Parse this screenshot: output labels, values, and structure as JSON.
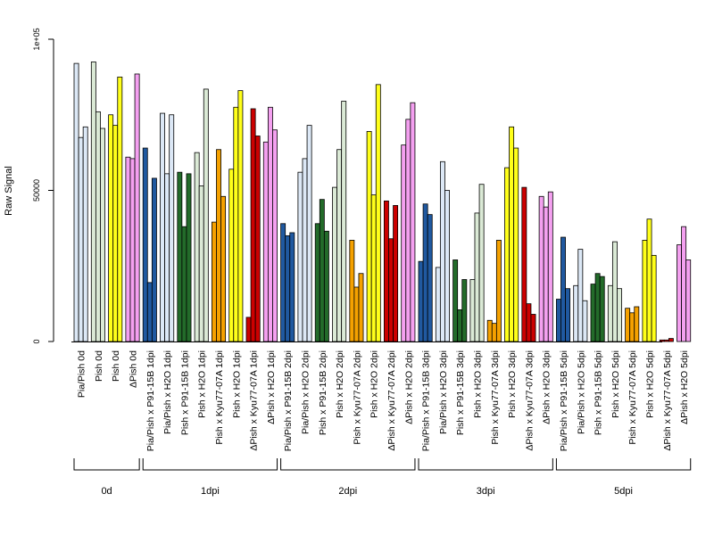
{
  "chart_data": {
    "type": "bar",
    "ylabel": "Raw Signal",
    "ylim": [
      0,
      100000
    ],
    "yticks": [
      {
        "value": 0,
        "label": "0"
      },
      {
        "value": 50000,
        "label": "50000"
      },
      {
        "value": 100000,
        "label": "1e+05"
      }
    ],
    "colors": {
      "PiaPish": "#dce8f6",
      "P91": "#2059a0",
      "H2O": "#dbead6",
      "P91H2O": "#236b2a",
      "Pish": "#ffff1a",
      "Kyu": "#f5a100",
      "dPish": "#f4a0f0",
      "dKyu": "#cc0000"
    },
    "categories": [
      {
        "label": "Pia/Pish 0d",
        "values": [
          92000,
          67500,
          71000
        ],
        "color": "PiaPish"
      },
      {
        "label": "Pish 0d",
        "values": [
          92500,
          76000,
          70500
        ],
        "color": "H2O"
      },
      {
        "label": "Pish 0d",
        "values": [
          75000,
          71500,
          87500
        ],
        "color": "Pish"
      },
      {
        "label": "ΔPish 0d",
        "values": [
          61000,
          60500,
          88500
        ],
        "color": "dPish"
      },
      {
        "label": "Pia/Pish x P91-15B 1dpi",
        "values": [
          64000,
          19500,
          54000
        ],
        "color": "P91"
      },
      {
        "label": "Pia/Pish x H2O 1dpi",
        "values": [
          75500,
          55500,
          75000
        ],
        "color": "PiaPish"
      },
      {
        "label": "Pish x P91-15B 1dpi",
        "values": [
          56000,
          38000,
          55500
        ],
        "color": "P91H2O"
      },
      {
        "label": "Pish x H2O 1dpi",
        "values": [
          62500,
          51500,
          83500
        ],
        "color": "H2O"
      },
      {
        "label": "Pish x Kyu77-07A 1dpi",
        "values": [
          39500,
          63500,
          48000
        ],
        "color": "Kyu"
      },
      {
        "label": "Pish x H2O 1dpi",
        "values": [
          57000,
          77500,
          83000
        ],
        "color": "Pish"
      },
      {
        "label": "ΔPish x Kyu77-07A 1dpi",
        "values": [
          8000,
          77000,
          68000
        ],
        "color": "dKyu"
      },
      {
        "label": "ΔPish x H2O 1dpi",
        "values": [
          66000,
          77500,
          70000
        ],
        "color": "dPish"
      },
      {
        "label": "Pia/Pish x P91-15B 2dpi",
        "values": [
          39000,
          35000,
          36000
        ],
        "color": "P91"
      },
      {
        "label": "Pia/Pish x H2O 2dpi",
        "values": [
          56000,
          60500,
          71500
        ],
        "color": "PiaPish"
      },
      {
        "label": "Pish x P91-15B 2dpi",
        "values": [
          39000,
          47000,
          36500
        ],
        "color": "P91H2O"
      },
      {
        "label": "Pish x H2O 2dpi",
        "values": [
          51000,
          63500,
          79500
        ],
        "color": "H2O"
      },
      {
        "label": "Pish x Kyu77-07A 2dpi",
        "values": [
          33500,
          18000,
          22500
        ],
        "color": "Kyu"
      },
      {
        "label": "Pish x H2O 2dpi",
        "values": [
          69500,
          48500,
          85000
        ],
        "color": "Pish"
      },
      {
        "label": "ΔPish x Kyu77-07A 2dpi",
        "values": [
          46500,
          34000,
          45000
        ],
        "color": "dKyu"
      },
      {
        "label": "ΔPish x H2O 2dpi",
        "values": [
          65000,
          73500,
          79000
        ],
        "color": "dPish"
      },
      {
        "label": "Pia/Pish x P91-15B 3dpi",
        "values": [
          26500,
          45500,
          42000
        ],
        "color": "P91"
      },
      {
        "label": "Pia/Pish x H2O 3dpi",
        "values": [
          24500,
          59500,
          50000
        ],
        "color": "PiaPish"
      },
      {
        "label": "Pish x P91-15B 3dpi",
        "values": [
          27000,
          10500,
          20500
        ],
        "color": "P91H2O"
      },
      {
        "label": "Pish x H2O 3dpi",
        "values": [
          20500,
          42500,
          52000
        ],
        "color": "H2O"
      },
      {
        "label": "Pish x Kyu77-07A 3dpi",
        "values": [
          7000,
          6000,
          33500
        ],
        "color": "Kyu"
      },
      {
        "label": "Pish x H2O 3dpi",
        "values": [
          57500,
          71000,
          64000
        ],
        "color": "Pish"
      },
      {
        "label": "ΔPish x Kyu77-07A 3dpi",
        "values": [
          51000,
          12500,
          9000
        ],
        "color": "dKyu"
      },
      {
        "label": "ΔPish x H2O 3dpi",
        "values": [
          48000,
          44500,
          49500
        ],
        "color": "dPish"
      },
      {
        "label": "Pia/Pish x P91-15B 5dpi",
        "values": [
          14000,
          34500,
          17500
        ],
        "color": "P91"
      },
      {
        "label": "Pia/Pish x H2O 5dpi",
        "values": [
          18500,
          30500,
          13500
        ],
        "color": "PiaPish"
      },
      {
        "label": "Pish x P91-15B 5dpi",
        "values": [
          19000,
          22500,
          21500
        ],
        "color": "P91H2O"
      },
      {
        "label": "Pish x H2O 5dpi",
        "values": [
          18500,
          33000,
          17500
        ],
        "color": "H2O"
      },
      {
        "label": "Pish x Kyu77-07A 5dpi",
        "values": [
          11000,
          9500,
          11500
        ],
        "color": "Kyu"
      },
      {
        "label": "Pish x H2O 5dpi",
        "values": [
          33500,
          40500,
          28500
        ],
        "color": "Pish"
      },
      {
        "label": "ΔPish x Kyu77-07A 5dpi",
        "values": [
          500,
          500,
          1000
        ],
        "color": "dKyu"
      },
      {
        "label": "ΔPish x H2O 5dpi",
        "values": [
          32000,
          38000,
          27000
        ],
        "color": "dPish"
      }
    ],
    "groups": [
      {
        "label": "0d",
        "start": 0,
        "end": 3
      },
      {
        "label": "1dpi",
        "start": 4,
        "end": 11
      },
      {
        "label": "2dpi",
        "start": 12,
        "end": 19
      },
      {
        "label": "3dpi",
        "start": 20,
        "end": 27
      },
      {
        "label": "5dpi",
        "start": 28,
        "end": 35
      }
    ]
  }
}
